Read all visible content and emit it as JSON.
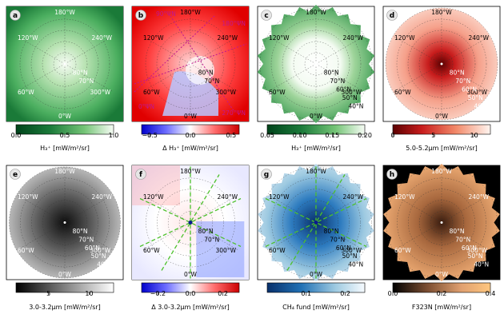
{
  "chart_data": [
    {
      "type": "heatmap",
      "label": "a",
      "colormap": "greens",
      "background": "square",
      "contours": "full",
      "lon_labels": [
        "180°W",
        "240°W",
        "300°W",
        "0°W",
        "60°W",
        "120°W"
      ],
      "lat_labels": [
        "80°N",
        "70°N"
      ],
      "colorbar": {
        "min": 0.0,
        "max": 1.0,
        "ticks": [
          0.0,
          0.5,
          1.0
        ],
        "label": "H₃⁺ [mW/m²/sr]"
      }
    },
    {
      "type": "heatmap",
      "label": "b",
      "colormap": "bwr",
      "background": "square",
      "contours": "full",
      "lon_labels": [
        "180°W",
        "240°W",
        "300°W",
        "0°W",
        "60°W",
        "120°W"
      ],
      "lat_labels": [
        "80°N",
        "70°N"
      ],
      "annotations": [
        "90°ΨN",
        "180°ΨN",
        "270°ΨN",
        "0°ΨN"
      ],
      "colorbar": {
        "min": -0.6,
        "max": 0.6,
        "ticks": [
          -0.5,
          0.0,
          0.5
        ],
        "label": "Δ H₃⁺ [mW/m²/sr]"
      }
    },
    {
      "type": "heatmap",
      "label": "c",
      "colormap": "greens",
      "background": "jagged",
      "contours": "partial",
      "lon_labels": [
        "180°W",
        "240°W",
        "300°W",
        "0°W",
        "60°W",
        "120°W"
      ],
      "lat_labels": [
        "80°N",
        "70°N",
        "60°N",
        "50°N",
        "40°N"
      ],
      "colorbar": {
        "min": 0.05,
        "max": 0.2,
        "ticks": [
          0.05,
          0.1,
          0.15,
          0.2
        ],
        "label": "H₃⁺ [mW/m²/sr]"
      }
    },
    {
      "type": "heatmap",
      "label": "d",
      "colormap": "reds",
      "background": "circle",
      "contours": "partial",
      "lon_labels": [
        "180°W",
        "240°W",
        "300°W",
        "0°W",
        "60°W",
        "120°W"
      ],
      "lat_labels": [
        "80°N",
        "70°N",
        "60°N",
        "50°N",
        "40°N"
      ],
      "colorbar": {
        "min": 0,
        "max": 12,
        "ticks": [
          0,
          5,
          10
        ],
        "label": "5.0-5.2μm [mW/m²/sr]"
      }
    },
    {
      "type": "heatmap",
      "label": "e",
      "colormap": "greys",
      "background": "circle",
      "contours": "partial",
      "lon_labels": [
        "180°W",
        "240°W",
        "300°W",
        "0°W",
        "60°W",
        "120°W"
      ],
      "lat_labels": [
        "80°N",
        "70°N",
        "60°N",
        "50°N",
        "40°N"
      ],
      "colorbar": {
        "min": 1,
        "max": 13,
        "ticks": [
          5,
          10
        ],
        "label": "3.0-3.2μm [mW/m²/sr]"
      }
    },
    {
      "type": "heatmap",
      "label": "f",
      "colormap": "bwr",
      "background": "square",
      "contours": "full",
      "lon_labels": [
        "180°W",
        "240°W",
        "300°W",
        "0°W",
        "60°W",
        "120°W"
      ],
      "lat_labels": [
        "80°N",
        "70°N"
      ],
      "colorbar": {
        "min": -0.3,
        "max": 0.3,
        "ticks": [
          -0.2,
          0.0,
          0.2
        ],
        "label": "Δ 3.0-3.2μm [mW/m²/sr]"
      }
    },
    {
      "type": "heatmap",
      "label": "g",
      "colormap": "blues",
      "background": "jagged",
      "contours": "partial",
      "lon_labels": [
        "180°W",
        "240°W",
        "300°W",
        "0°W",
        "60°W",
        "120°W"
      ],
      "lat_labels": [
        "80°N",
        "70°N",
        "60°N",
        "50°N",
        "40°N"
      ],
      "colorbar": {
        "min": 0.0,
        "max": 0.25,
        "ticks": [
          0.1,
          0.2
        ],
        "label": "CH₄ fund [mW/m²/sr]"
      }
    },
    {
      "type": "heatmap",
      "label": "h",
      "colormap": "copper",
      "background": "jagged_on_black",
      "contours": "partial",
      "lon_labels": [
        "180°W",
        "240°W",
        "300°W",
        "0°W",
        "60°W",
        "120°W"
      ],
      "lat_labels": [
        "80°N",
        "70°N",
        "60°N",
        "50°N",
        "40°N"
      ],
      "colorbar": {
        "min": 0.0,
        "max": 0.4,
        "ticks": [
          0.0,
          0.2,
          0.4
        ],
        "label": "F323N [mW/m²/sr]"
      }
    }
  ]
}
